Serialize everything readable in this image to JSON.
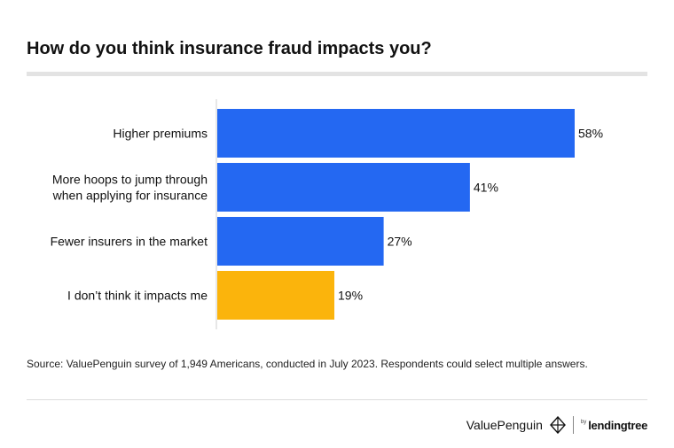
{
  "header": {
    "title": "How do you think insurance fraud impacts you?"
  },
  "chart_data": {
    "type": "bar",
    "orientation": "horizontal",
    "title": "How do you think insurance fraud impacts you?",
    "categories": [
      [
        "Higher premiums"
      ],
      [
        "More hoops to jump through",
        "when applying for insurance"
      ],
      [
        "Fewer insurers in the market"
      ],
      [
        "I don’t think it impacts me"
      ]
    ],
    "values": [
      58,
      41,
      27,
      19
    ],
    "value_labels": [
      "58%",
      "41%",
      "27%",
      "19%"
    ],
    "unit": "%",
    "xlim": [
      0,
      58
    ],
    "bar_colors": [
      "#2468f2",
      "#2468f2",
      "#2468f2",
      "#fbb40c"
    ],
    "grid": false,
    "legend": "none"
  },
  "footer": {
    "source": "Source: ValuePenguin survey of 1,949 Americans, conducted in July 2023. Respondents could select multiple answers.",
    "brand": "ValuePenguin",
    "by": "by",
    "partner": "lendingtree"
  }
}
